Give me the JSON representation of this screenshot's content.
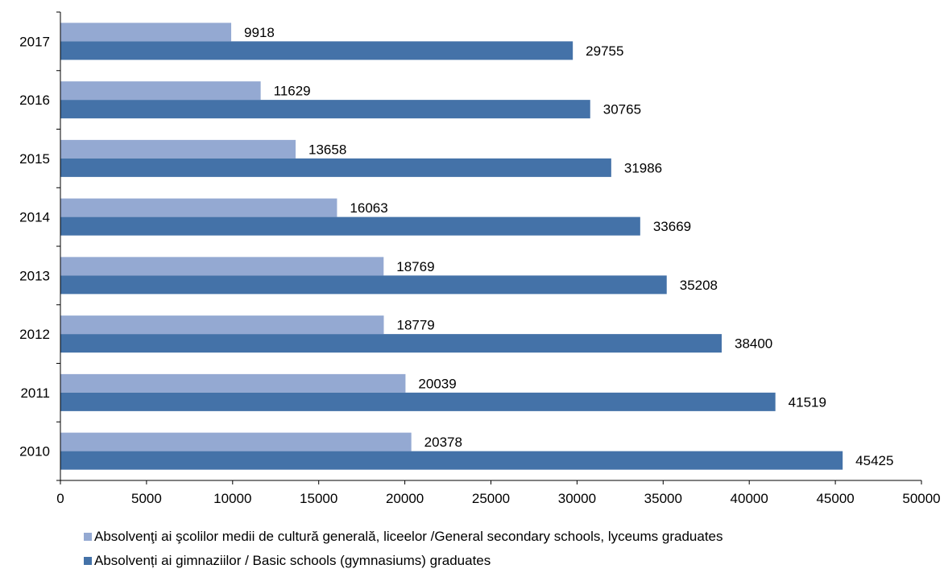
{
  "chart_data": {
    "type": "bar",
    "orientation": "horizontal",
    "categories": [
      "2010",
      "2011",
      "2012",
      "2013",
      "2014",
      "2015",
      "2016",
      "2017"
    ],
    "series": [
      {
        "name": "Absolvenţi ai şcolilor medii de cultură generală, liceelor /General secondary schools, lyceums graduates",
        "color": "#94A9D2",
        "values": [
          20378,
          20039,
          18779,
          18769,
          16063,
          13658,
          11629,
          9918
        ]
      },
      {
        "name": "Absolvenți ai gimnaziilor / Basic schools (gymnasiums) graduates",
        "color": "#4472A8",
        "values": [
          45425,
          41519,
          38400,
          35208,
          33669,
          31986,
          30765,
          29755
        ]
      }
    ],
    "xlim": [
      0,
      50000
    ],
    "xticks": [
      "0",
      "5000",
      "10000",
      "15000",
      "20000",
      "25000",
      "30000",
      "35000",
      "40000",
      "45000",
      "50000"
    ],
    "title": "",
    "xlabel": "",
    "ylabel": "",
    "grid": false,
    "legend_position": "bottom"
  }
}
